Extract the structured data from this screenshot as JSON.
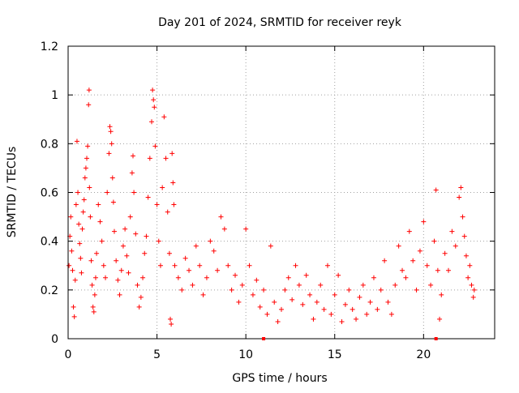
{
  "chart_data": {
    "type": "scatter",
    "title": "Day 201 of 2024, SRMTID for receiver reyk",
    "xlabel": "GPS time / hours",
    "ylabel": "SRMTID / TECUs",
    "xlim": [
      0,
      24
    ],
    "ylim": [
      0,
      1.2
    ],
    "xticks": [
      0,
      5,
      10,
      15,
      20
    ],
    "xtick_labels": [
      "0",
      "5",
      "10",
      "15",
      "20"
    ],
    "yticks": [
      0,
      0.2,
      0.4,
      0.6,
      0.8,
      1.0,
      1.2
    ],
    "ytick_labels": [
      "0",
      "0.2",
      "0.4",
      "0.6",
      "0.8",
      "1",
      "1.2"
    ],
    "grid": true,
    "marker": "+",
    "color": "#ff0000",
    "gap_markers_x": [
      11.0,
      20.7
    ],
    "series": [
      {
        "name": "SRMTID",
        "points": [
          [
            0.05,
            0.3
          ],
          [
            0.1,
            0.42
          ],
          [
            0.15,
            0.5
          ],
          [
            0.2,
            0.36
          ],
          [
            0.25,
            0.28
          ],
          [
            0.3,
            0.13
          ],
          [
            0.35,
            0.09
          ],
          [
            0.4,
            0.24
          ],
          [
            0.45,
            0.55
          ],
          [
            0.5,
            0.81
          ],
          [
            0.55,
            0.6
          ],
          [
            0.6,
            0.47
          ],
          [
            0.65,
            0.39
          ],
          [
            0.7,
            0.33
          ],
          [
            0.75,
            0.27
          ],
          [
            0.8,
            0.45
          ],
          [
            0.85,
            0.52
          ],
          [
            0.9,
            0.57
          ],
          [
            0.95,
            0.66
          ],
          [
            1.0,
            0.7
          ],
          [
            1.05,
            0.74
          ],
          [
            1.1,
            0.79
          ],
          [
            1.15,
            0.96
          ],
          [
            1.18,
            1.02
          ],
          [
            1.2,
            0.62
          ],
          [
            1.25,
            0.5
          ],
          [
            1.3,
            0.32
          ],
          [
            1.35,
            0.22
          ],
          [
            1.4,
            0.13
          ],
          [
            1.45,
            0.11
          ],
          [
            1.5,
            0.18
          ],
          [
            1.55,
            0.25
          ],
          [
            1.6,
            0.35
          ],
          [
            1.7,
            0.55
          ],
          [
            1.8,
            0.48
          ],
          [
            1.9,
            0.4
          ],
          [
            2.0,
            0.3
          ],
          [
            2.1,
            0.25
          ],
          [
            2.2,
            0.6
          ],
          [
            2.3,
            0.76
          ],
          [
            2.35,
            0.87
          ],
          [
            2.4,
            0.85
          ],
          [
            2.45,
            0.8
          ],
          [
            2.5,
            0.66
          ],
          [
            2.55,
            0.56
          ],
          [
            2.6,
            0.44
          ],
          [
            2.7,
            0.32
          ],
          [
            2.8,
            0.24
          ],
          [
            2.9,
            0.18
          ],
          [
            3.0,
            0.28
          ],
          [
            3.1,
            0.38
          ],
          [
            3.2,
            0.45
          ],
          [
            3.3,
            0.34
          ],
          [
            3.4,
            0.27
          ],
          [
            3.5,
            0.5
          ],
          [
            3.6,
            0.68
          ],
          [
            3.65,
            0.75
          ],
          [
            3.7,
            0.6
          ],
          [
            3.8,
            0.43
          ],
          [
            3.9,
            0.22
          ],
          [
            4.0,
            0.13
          ],
          [
            4.1,
            0.17
          ],
          [
            4.2,
            0.25
          ],
          [
            4.3,
            0.35
          ],
          [
            4.4,
            0.42
          ],
          [
            4.5,
            0.58
          ],
          [
            4.6,
            0.74
          ],
          [
            4.7,
            0.89
          ],
          [
            4.75,
            1.02
          ],
          [
            4.8,
            0.98
          ],
          [
            4.85,
            0.95
          ],
          [
            4.9,
            0.79
          ],
          [
            5.0,
            0.55
          ],
          [
            5.1,
            0.4
          ],
          [
            5.2,
            0.3
          ],
          [
            5.3,
            0.62
          ],
          [
            5.4,
            0.91
          ],
          [
            5.5,
            0.74
          ],
          [
            5.6,
            0.52
          ],
          [
            5.7,
            0.35
          ],
          [
            5.75,
            0.08
          ],
          [
            5.8,
            0.06
          ],
          [
            5.85,
            0.76
          ],
          [
            5.9,
            0.64
          ],
          [
            5.95,
            0.55
          ],
          [
            6.0,
            0.3
          ],
          [
            6.2,
            0.25
          ],
          [
            6.4,
            0.2
          ],
          [
            6.6,
            0.33
          ],
          [
            6.8,
            0.28
          ],
          [
            7.0,
            0.22
          ],
          [
            7.2,
            0.38
          ],
          [
            7.4,
            0.3
          ],
          [
            7.6,
            0.18
          ],
          [
            7.8,
            0.25
          ],
          [
            8.0,
            0.4
          ],
          [
            8.2,
            0.36
          ],
          [
            8.4,
            0.28
          ],
          [
            8.6,
            0.5
          ],
          [
            8.8,
            0.45
          ],
          [
            9.0,
            0.3
          ],
          [
            9.2,
            0.2
          ],
          [
            9.4,
            0.26
          ],
          [
            9.6,
            0.15
          ],
          [
            9.8,
            0.22
          ],
          [
            10.0,
            0.45
          ],
          [
            10.2,
            0.3
          ],
          [
            10.4,
            0.18
          ],
          [
            10.6,
            0.24
          ],
          [
            10.8,
            0.13
          ],
          [
            11.0,
            0.2
          ],
          [
            11.2,
            0.1
          ],
          [
            11.4,
            0.38
          ],
          [
            11.6,
            0.15
          ],
          [
            11.8,
            0.07
          ],
          [
            12.0,
            0.12
          ],
          [
            12.2,
            0.2
          ],
          [
            12.4,
            0.25
          ],
          [
            12.6,
            0.16
          ],
          [
            12.8,
            0.3
          ],
          [
            13.0,
            0.22
          ],
          [
            13.2,
            0.14
          ],
          [
            13.4,
            0.26
          ],
          [
            13.6,
            0.18
          ],
          [
            13.8,
            0.08
          ],
          [
            14.0,
            0.15
          ],
          [
            14.2,
            0.22
          ],
          [
            14.4,
            0.12
          ],
          [
            14.6,
            0.3
          ],
          [
            14.8,
            0.1
          ],
          [
            15.0,
            0.18
          ],
          [
            15.2,
            0.26
          ],
          [
            15.4,
            0.07
          ],
          [
            15.6,
            0.14
          ],
          [
            15.8,
            0.2
          ],
          [
            16.0,
            0.12
          ],
          [
            16.2,
            0.08
          ],
          [
            16.4,
            0.17
          ],
          [
            16.6,
            0.22
          ],
          [
            16.8,
            0.1
          ],
          [
            17.0,
            0.15
          ],
          [
            17.2,
            0.25
          ],
          [
            17.4,
            0.12
          ],
          [
            17.6,
            0.2
          ],
          [
            17.8,
            0.32
          ],
          [
            18.0,
            0.15
          ],
          [
            18.2,
            0.1
          ],
          [
            18.4,
            0.22
          ],
          [
            18.6,
            0.38
          ],
          [
            18.8,
            0.28
          ],
          [
            19.0,
            0.25
          ],
          [
            19.2,
            0.44
          ],
          [
            19.4,
            0.32
          ],
          [
            19.6,
            0.2
          ],
          [
            19.8,
            0.36
          ],
          [
            20.0,
            0.48
          ],
          [
            20.2,
            0.3
          ],
          [
            20.4,
            0.22
          ],
          [
            20.6,
            0.4
          ],
          [
            20.7,
            0.61
          ],
          [
            20.8,
            0.28
          ],
          [
            20.9,
            0.08
          ],
          [
            21.0,
            0.18
          ],
          [
            21.2,
            0.35
          ],
          [
            21.4,
            0.28
          ],
          [
            21.6,
            0.44
          ],
          [
            21.8,
            0.38
          ],
          [
            22.0,
            0.58
          ],
          [
            22.1,
            0.62
          ],
          [
            22.2,
            0.5
          ],
          [
            22.3,
            0.42
          ],
          [
            22.4,
            0.34
          ],
          [
            22.5,
            0.25
          ],
          [
            22.6,
            0.3
          ],
          [
            22.7,
            0.22
          ],
          [
            22.8,
            0.17
          ],
          [
            22.85,
            0.2
          ]
        ]
      }
    ]
  }
}
